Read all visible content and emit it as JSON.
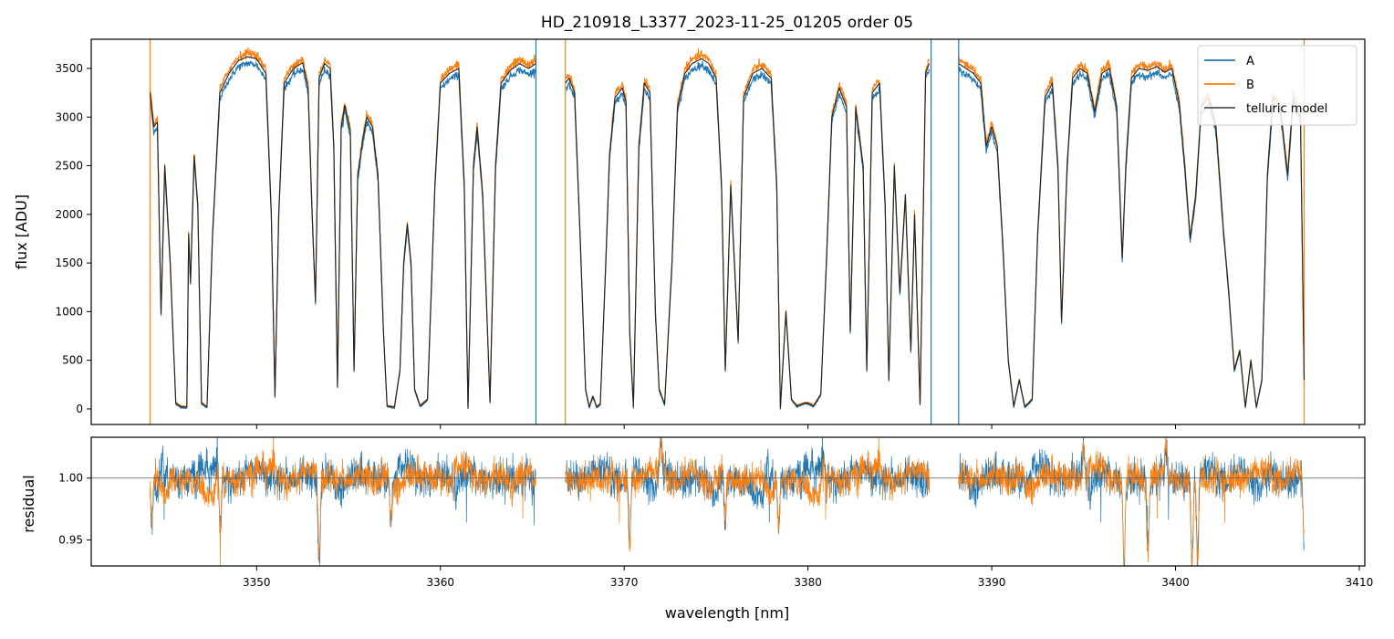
{
  "chart_data": [
    {
      "type": "line",
      "title": "HD_210918_L3377_2023-11-25_01205  order 05",
      "xlabel": "",
      "ylabel": "flux [ADU]",
      "xlim": [
        3341,
        3410.3
      ],
      "ylim": [
        -160,
        3800
      ],
      "x_ticks": [
        3350,
        3360,
        3370,
        3380,
        3390,
        3400,
        3410
      ],
      "y_ticks": [
        0,
        500,
        1000,
        1500,
        2000,
        2500,
        3000,
        3500
      ],
      "y_tick_labels": [
        "0",
        "500",
        "1000",
        "1500",
        "2000",
        "2500",
        "3000",
        "3500"
      ],
      "x_tick_labels_shown": false,
      "legend": {
        "placement": "top-right",
        "entries": [
          {
            "label": "A",
            "color": "#1f77b4"
          },
          {
            "label": "B",
            "color": "#ff7f0e"
          },
          {
            "label": "telluric model",
            "color": "#555555"
          }
        ]
      },
      "series": [
        {
          "name": "A",
          "color": "#1f77b4"
        },
        {
          "name": "B",
          "color": "#ff7f0e"
        },
        {
          "name": "telluric model",
          "color": "#222222",
          "points": [
            [
              3344.2,
              3250
            ],
            [
              3344.4,
              2900
            ],
            [
              3344.6,
              2950
            ],
            [
              3344.8,
              980
            ],
            [
              3345.0,
              2500
            ],
            [
              3345.3,
              1500
            ],
            [
              3345.6,
              60
            ],
            [
              3345.9,
              20
            ],
            [
              3346.2,
              20
            ],
            [
              3346.3,
              1800
            ],
            [
              3346.4,
              1300
            ],
            [
              3346.6,
              2600
            ],
            [
              3346.8,
              2100
            ],
            [
              3347.0,
              60
            ],
            [
              3347.3,
              20
            ],
            [
              3347.6,
              1800
            ],
            [
              3348.0,
              3250
            ],
            [
              3348.5,
              3450
            ],
            [
              3349.0,
              3580
            ],
            [
              3349.5,
              3620
            ],
            [
              3350.0,
              3600
            ],
            [
              3350.5,
              3450
            ],
            [
              3350.8,
              2000
            ],
            [
              3351.0,
              130
            ],
            [
              3351.2,
              2000
            ],
            [
              3351.5,
              3350
            ],
            [
              3352.0,
              3500
            ],
            [
              3352.5,
              3560
            ],
            [
              3352.8,
              3300
            ],
            [
              3353.0,
              2130
            ],
            [
              3353.2,
              1100
            ],
            [
              3353.4,
              3400
            ],
            [
              3353.7,
              3550
            ],
            [
              3354.0,
              3500
            ],
            [
              3354.2,
              2700
            ],
            [
              3354.4,
              230
            ],
            [
              3354.6,
              2900
            ],
            [
              3354.8,
              3120
            ],
            [
              3355.1,
              2850
            ],
            [
              3355.3,
              400
            ],
            [
              3355.5,
              2400
            ],
            [
              3355.8,
              2800
            ],
            [
              3356.0,
              3000
            ],
            [
              3356.3,
              2900
            ],
            [
              3356.6,
              2400
            ],
            [
              3356.9,
              800
            ],
            [
              3357.1,
              30
            ],
            [
              3357.5,
              20
            ],
            [
              3357.8,
              400
            ],
            [
              3358.0,
              1500
            ],
            [
              3358.2,
              1900
            ],
            [
              3358.4,
              1500
            ],
            [
              3358.6,
              200
            ],
            [
              3358.9,
              30
            ],
            [
              3359.3,
              100
            ],
            [
              3359.7,
              2300
            ],
            [
              3360.0,
              3350
            ],
            [
              3360.5,
              3450
            ],
            [
              3361.0,
              3500
            ],
            [
              3361.3,
              2300
            ],
            [
              3361.5,
              10
            ],
            [
              3361.8,
              2500
            ],
            [
              3362.0,
              2900
            ],
            [
              3362.3,
              2200
            ],
            [
              3362.7,
              70
            ],
            [
              3363.0,
              2500
            ],
            [
              3363.3,
              3350
            ],
            [
              3363.8,
              3480
            ],
            [
              3364.3,
              3550
            ],
            [
              3364.8,
              3500
            ],
            [
              3365.2,
              3550
            ],
            [
              3366.8,
              3350
            ],
            [
              3367.0,
              3400
            ],
            [
              3367.3,
              3250
            ],
            [
              3367.6,
              1800
            ],
            [
              3367.9,
              200
            ],
            [
              3368.1,
              20
            ],
            [
              3368.3,
              130
            ],
            [
              3368.5,
              20
            ],
            [
              3368.7,
              50
            ],
            [
              3369.0,
              1500
            ],
            [
              3369.2,
              2600
            ],
            [
              3369.5,
              3200
            ],
            [
              3369.9,
              3300
            ],
            [
              3370.1,
              3150
            ],
            [
              3370.3,
              800
            ],
            [
              3370.5,
              20
            ],
            [
              3370.8,
              2700
            ],
            [
              3371.1,
              3350
            ],
            [
              3371.4,
              3250
            ],
            [
              3371.7,
              1000
            ],
            [
              3371.9,
              200
            ],
            [
              3372.2,
              50
            ],
            [
              3372.6,
              1500
            ],
            [
              3372.9,
              3100
            ],
            [
              3373.3,
              3450
            ],
            [
              3373.7,
              3550
            ],
            [
              3374.2,
              3600
            ],
            [
              3374.6,
              3550
            ],
            [
              3375.0,
              3400
            ],
            [
              3375.3,
              2300
            ],
            [
              3375.5,
              400
            ],
            [
              3375.8,
              2300
            ],
            [
              3376.2,
              700
            ],
            [
              3376.5,
              3200
            ],
            [
              3377.0,
              3450
            ],
            [
              3377.5,
              3500
            ],
            [
              3378.0,
              3400
            ],
            [
              3378.3,
              2300
            ],
            [
              3378.5,
              10
            ],
            [
              3378.8,
              1000
            ],
            [
              3379.1,
              100
            ],
            [
              3379.4,
              30
            ],
            [
              3379.8,
              60
            ],
            [
              3380.0,
              60
            ],
            [
              3380.3,
              30
            ],
            [
              3380.7,
              150
            ],
            [
              3381.0,
              1500
            ],
            [
              3381.3,
              3000
            ],
            [
              3381.7,
              3300
            ],
            [
              3382.1,
              3100
            ],
            [
              3382.3,
              800
            ],
            [
              3382.6,
              3100
            ],
            [
              3383.0,
              2500
            ],
            [
              3383.2,
              400
            ],
            [
              3383.5,
              3250
            ],
            [
              3383.9,
              3350
            ],
            [
              3384.2,
              2100
            ],
            [
              3384.4,
              300
            ],
            [
              3384.7,
              2500
            ],
            [
              3385.0,
              1200
            ],
            [
              3385.3,
              2200
            ],
            [
              3385.6,
              600
            ],
            [
              3385.8,
              2000
            ],
            [
              3386.1,
              50
            ],
            [
              3386.4,
              3450
            ],
            [
              3386.6,
              3550
            ],
            [
              3388.2,
              3550
            ],
            [
              3388.6,
              3500
            ],
            [
              3389.0,
              3450
            ],
            [
              3389.4,
              3350
            ],
            [
              3389.7,
              2700
            ],
            [
              3390.0,
              2900
            ],
            [
              3390.3,
              2700
            ],
            [
              3390.6,
              1700
            ],
            [
              3390.9,
              500
            ],
            [
              3391.2,
              30
            ],
            [
              3391.5,
              300
            ],
            [
              3391.8,
              20
            ],
            [
              3392.2,
              100
            ],
            [
              3392.5,
              1800
            ],
            [
              3392.9,
              3200
            ],
            [
              3393.3,
              3350
            ],
            [
              3393.6,
              2500
            ],
            [
              3393.8,
              900
            ],
            [
              3394.1,
              2500
            ],
            [
              3394.4,
              3400
            ],
            [
              3394.8,
              3500
            ],
            [
              3395.2,
              3450
            ],
            [
              3395.6,
              3050
            ],
            [
              3396.0,
              3450
            ],
            [
              3396.4,
              3500
            ],
            [
              3396.8,
              3100
            ],
            [
              3397.1,
              1550
            ],
            [
              3397.3,
              2500
            ],
            [
              3397.6,
              3400
            ],
            [
              3398.0,
              3500
            ],
            [
              3398.5,
              3480
            ],
            [
              3399.0,
              3520
            ],
            [
              3399.4,
              3460
            ],
            [
              3399.8,
              3500
            ],
            [
              3400.2,
              3150
            ],
            [
              3400.5,
              2500
            ],
            [
              3400.8,
              1750
            ],
            [
              3401.1,
              2200
            ],
            [
              3401.4,
              3100
            ],
            [
              3401.8,
              3200
            ],
            [
              3402.2,
              2900
            ],
            [
              3402.6,
              1850
            ],
            [
              3402.9,
              1200
            ],
            [
              3403.2,
              400
            ],
            [
              3403.5,
              600
            ],
            [
              3403.8,
              20
            ],
            [
              3404.1,
              500
            ],
            [
              3404.4,
              20
            ],
            [
              3404.7,
              300
            ],
            [
              3405.0,
              2400
            ],
            [
              3405.3,
              3200
            ],
            [
              3405.7,
              3100
            ],
            [
              3406.1,
              2400
            ],
            [
              3406.4,
              3200
            ],
            [
              3406.8,
              3000
            ],
            [
              3407.0,
              300
            ]
          ]
        }
      ],
      "gaps": [
        [
          3365.2,
          3366.8
        ],
        [
          3386.6,
          3388.2
        ]
      ],
      "spikes": [
        {
          "x": 3344.2,
          "color": "#ff7f0e"
        },
        {
          "x": 3365.2,
          "color": "#1f77b4"
        },
        {
          "x": 3366.8,
          "color": "#ff7f0e"
        },
        {
          "x": 3386.7,
          "color": "#1f77b4"
        },
        {
          "x": 3388.2,
          "color": "#1f77b4"
        },
        {
          "x": 3407.0,
          "color": "#ff7f0e"
        }
      ],
      "grid": false
    },
    {
      "type": "line",
      "title": "",
      "xlabel": "wavelength [nm]",
      "ylabel": "residual",
      "xlim": [
        3341,
        3410.3
      ],
      "ylim": [
        0.929,
        1.033
      ],
      "x_ticks": [
        3350,
        3360,
        3370,
        3380,
        3390,
        3400,
        3410
      ],
      "x_tick_labels": [
        "3350",
        "3360",
        "3370",
        "3380",
        "3390",
        "3400",
        "3410"
      ],
      "y_ticks": [
        0.95,
        1.0
      ],
      "y_tick_labels": [
        "0.95",
        "1.00"
      ],
      "reference_line": 1.0,
      "segments": [
        [
          3344.2,
          3365.2
        ],
        [
          3366.8,
          3386.6
        ],
        [
          3388.2,
          3407.0
        ]
      ],
      "series": [
        {
          "name": "A",
          "color": "#1f77b4",
          "noise_sigma": 0.007
        },
        {
          "name": "B",
          "color": "#ff7f0e",
          "noise_sigma": 0.006
        }
      ],
      "features": [
        {
          "x": 3344.3,
          "y": 0.963
        },
        {
          "x": 3348.0,
          "y": 0.958
        },
        {
          "x": 3353.4,
          "y": 0.929
        },
        {
          "x": 3357.3,
          "y": 0.972
        },
        {
          "x": 3370.3,
          "y": 0.94
        },
        {
          "x": 3372.0,
          "y": 1.033
        },
        {
          "x": 3375.5,
          "y": 0.965
        },
        {
          "x": 3378.4,
          "y": 0.958
        },
        {
          "x": 3397.2,
          "y": 0.929
        },
        {
          "x": 3398.5,
          "y": 0.945
        },
        {
          "x": 3400.9,
          "y": 0.929
        },
        {
          "x": 3401.2,
          "y": 0.929
        },
        {
          "x": 3399.5,
          "y": 1.033
        },
        {
          "x": 3395.0,
          "y": 1.03
        },
        {
          "x": 3407.0,
          "y": 0.95
        }
      ],
      "grid": false
    }
  ]
}
